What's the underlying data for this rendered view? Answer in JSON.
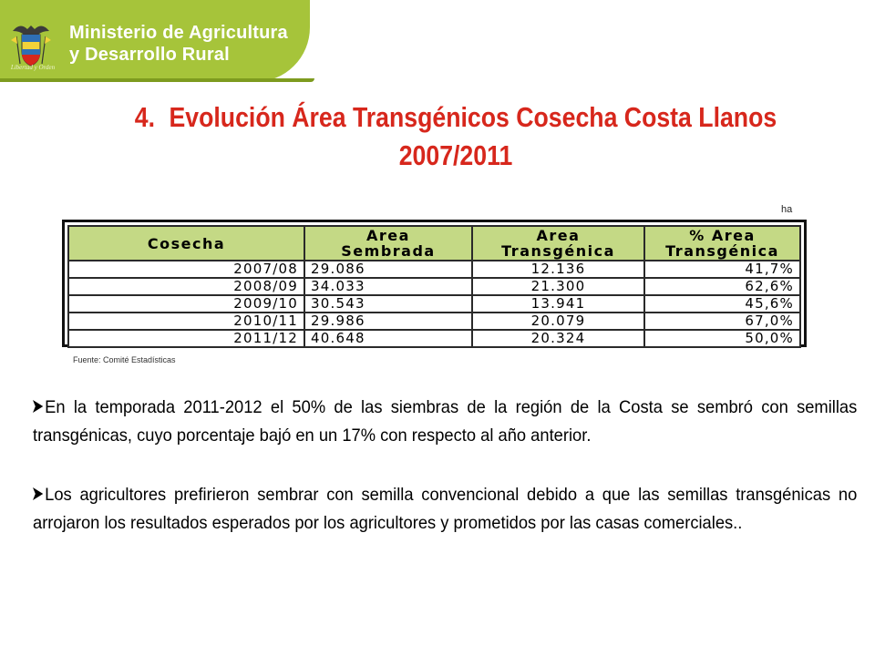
{
  "header": {
    "ministry_line1": "Ministerio de Agricultura",
    "ministry_line2": "y Desarrollo Rural",
    "motto": "Libertad y Orden",
    "banner_color": "#a6c43a"
  },
  "title": {
    "number": "4.",
    "line1": "Evolución Área Transgénicos Cosecha Costa Llanos",
    "line2": "2007/2011",
    "color": "#d7271c"
  },
  "unit": "ha",
  "table": {
    "headers": {
      "season": "Cosecha",
      "area_line1": "Area",
      "area_line2": "Sembrada",
      "trans_line1": "Area",
      "trans_line2": "Transgénica",
      "pct_line1": "% Area",
      "pct_line2": "Transgénica"
    },
    "header_color": "#c4d985",
    "rows": [
      {
        "season": "2007/08",
        "area": "29.086",
        "trans": "12.136",
        "pct": "41,7%"
      },
      {
        "season": "2008/09",
        "area": "34.033",
        "trans": "21.300",
        "pct": "62,6%"
      },
      {
        "season": "2009/10",
        "area": "30.543",
        "trans": "13.941",
        "pct": "45,6%"
      },
      {
        "season": "2010/11",
        "area": "29.986",
        "trans": "20.079",
        "pct": "67,0%"
      },
      {
        "season": "2011/12",
        "area": "40.648",
        "trans": "20.324",
        "pct": "50,0%"
      }
    ]
  },
  "source": "Fuente: Comité Estadísticas",
  "bullets": [
    "En la temporada 2011-2012 el 50% de las siembras de la región de la Costa  se sembró con semillas transgénicas, cuyo porcentaje bajó en un 17% con respecto al año anterior.",
    "Los agricultores prefirieron sembrar con semilla convencional debido a que las semillas transgénicas no arrojaron los resultados esperados por los agricultores y prometidos por las casas comerciales.."
  ],
  "icons": {
    "crest": "coat-of-arms-icon",
    "bullet": "arrow-bullet-icon"
  }
}
